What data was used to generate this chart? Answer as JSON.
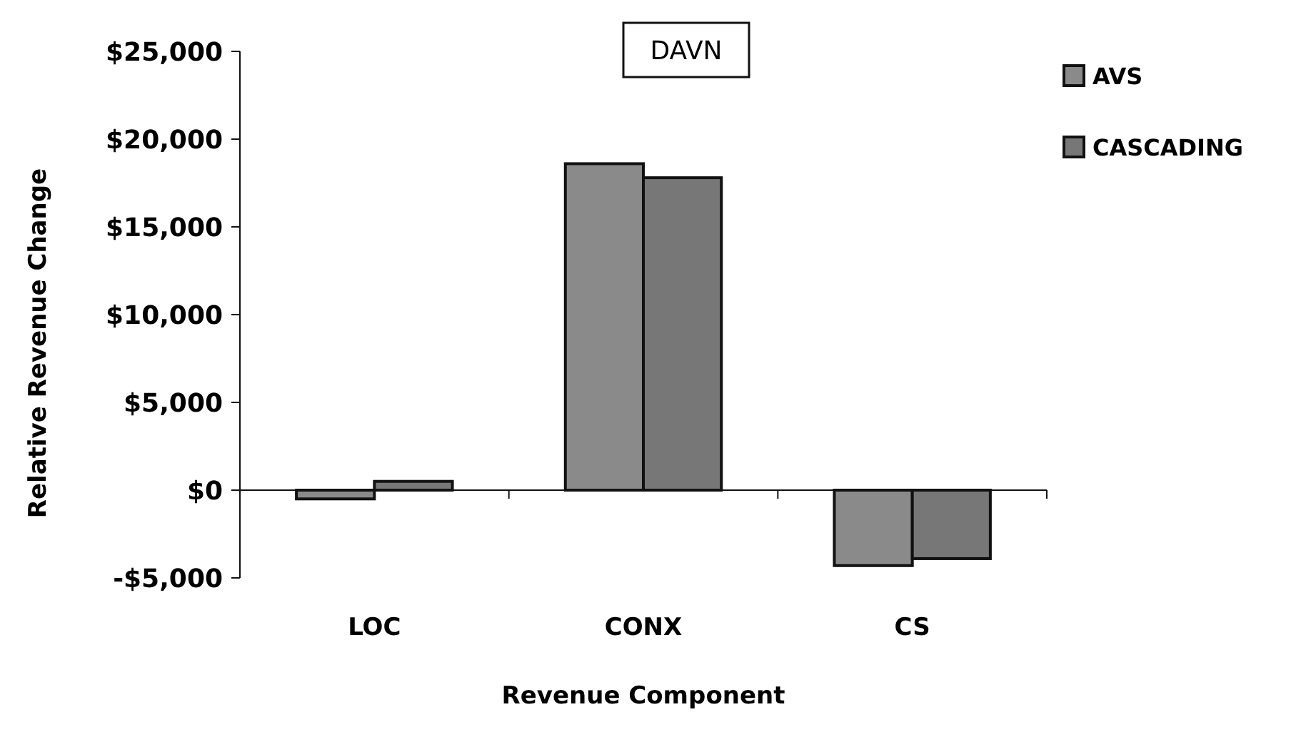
{
  "chart_data": {
    "type": "bar",
    "title": "DAVN",
    "xlabel": "Revenue Component",
    "ylabel": "Relative Revenue Change",
    "categories": [
      "LOC",
      "CONX",
      "CS"
    ],
    "series": [
      {
        "name": "AVS",
        "color": "#8a8a8a",
        "values": [
          -500,
          18600,
          -4300
        ]
      },
      {
        "name": "CASCADING",
        "color": "#777777",
        "values": [
          500,
          17800,
          -3900
        ]
      }
    ],
    "ylim": [
      -5000,
      25000
    ],
    "yticks": [
      {
        "value": -5000,
        "label": "-$5,000"
      },
      {
        "value": 0,
        "label": "$0"
      },
      {
        "value": 5000,
        "label": "$5,000"
      },
      {
        "value": 10000,
        "label": "$10,000"
      },
      {
        "value": 15000,
        "label": "$15,000"
      },
      {
        "value": 20000,
        "label": "$20,000"
      },
      {
        "value": 25000,
        "label": "$25,000"
      }
    ],
    "legend": "top right"
  }
}
